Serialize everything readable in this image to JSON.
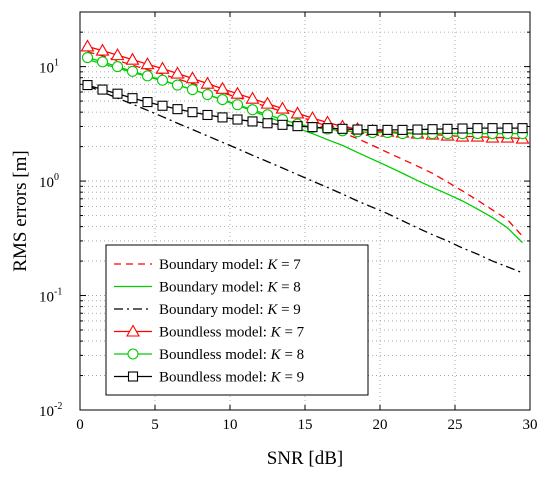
{
  "chart_data": {
    "type": "line",
    "title": "",
    "xlabel": "SNR [dB]",
    "ylabel": "RMS errors [m]",
    "xlim": [
      0,
      30
    ],
    "ylim": [
      0.01,
      30
    ],
    "yscale": "log",
    "grid": true,
    "legend_position": "bottom-left",
    "x_ticks": [
      0,
      5,
      10,
      15,
      20,
      25,
      30
    ],
    "x_tick_labels": [
      "0",
      "5",
      "10",
      "15",
      "20",
      "25",
      "30"
    ],
    "y_ticks": [
      0.01,
      0.1,
      1,
      10
    ],
    "y_tick_labels": [
      {
        "base": "10",
        "exp": "-2"
      },
      {
        "base": "10",
        "exp": "-1"
      },
      {
        "base": "10",
        "exp": "0"
      },
      {
        "base": "10",
        "exp": "1"
      }
    ],
    "x": [
      0.5,
      1.5,
      2.5,
      3.5,
      4.5,
      5.5,
      6.5,
      7.5,
      8.5,
      9.5,
      10.5,
      11.5,
      12.5,
      13.5,
      14.5,
      15.5,
      16.5,
      17.5,
      18.5,
      19.5,
      20.5,
      21.5,
      22.5,
      23.5,
      24.5,
      25.5,
      26.5,
      27.5,
      28.5,
      29.5
    ],
    "series": [
      {
        "name": "Boundary model: K = 7",
        "label_prefix": "Boundary model: ",
        "label_var": "K",
        "label_value": " = 7",
        "color": "#ff0000",
        "dash": "7,5",
        "marker": "none",
        "values": [
          13.5,
          12.4,
          11.3,
          10.3,
          9.4,
          8.6,
          7.8,
          7.1,
          6.5,
          5.9,
          5.4,
          4.9,
          4.45,
          4.05,
          3.7,
          3.35,
          3.0,
          2.65,
          2.35,
          2.05,
          1.78,
          1.55,
          1.35,
          1.17,
          0.98,
          0.82,
          0.68,
          0.56,
          0.46,
          0.33
        ]
      },
      {
        "name": "Boundary model: K = 8",
        "label_prefix": "Boundary model: ",
        "label_var": "K",
        "label_value": " = 8",
        "color": "#00cc00",
        "dash": "",
        "marker": "none",
        "values": [
          11.5,
          10.6,
          9.7,
          8.9,
          8.2,
          7.5,
          6.9,
          6.3,
          5.7,
          5.1,
          4.6,
          4.1,
          3.65,
          3.25,
          2.9,
          2.6,
          2.3,
          2.05,
          1.78,
          1.55,
          1.35,
          1.17,
          1.01,
          0.88,
          0.77,
          0.67,
          0.57,
          0.48,
          0.39,
          0.29
        ]
      },
      {
        "name": "Boundary model: K = 9",
        "label_prefix": "Boundary model: ",
        "label_var": "K",
        "label_value": " = 9",
        "color": "#000000",
        "dash": "9,4,2,4",
        "marker": "none",
        "values": [
          6.8,
          6.0,
          5.3,
          4.7,
          4.15,
          3.65,
          3.2,
          2.82,
          2.48,
          2.18,
          1.92,
          1.68,
          1.48,
          1.3,
          1.14,
          1.0,
          0.88,
          0.77,
          0.67,
          0.59,
          0.52,
          0.45,
          0.39,
          0.34,
          0.3,
          0.26,
          0.23,
          0.2,
          0.178,
          0.158
        ]
      },
      {
        "name": "Boundless model: K = 7",
        "label_prefix": "Boundless model: ",
        "label_var": "K",
        "label_value": " = 7",
        "color": "#ff0000",
        "dash": "",
        "marker": "triangle",
        "values": [
          15.0,
          13.8,
          12.6,
          11.5,
          10.5,
          9.6,
          8.7,
          7.9,
          7.1,
          6.4,
          5.8,
          5.25,
          4.75,
          4.3,
          3.9,
          3.55,
          3.25,
          3.0,
          2.85,
          2.75,
          2.7,
          2.65,
          2.6,
          2.55,
          2.5,
          2.45,
          2.45,
          2.4,
          2.4,
          2.35
        ]
      },
      {
        "name": "Boundless model: K = 8",
        "label_prefix": "Boundless model: ",
        "label_var": "K",
        "label_value": " = 8",
        "color": "#00cc00",
        "dash": "",
        "marker": "circle",
        "values": [
          12.0,
          11.0,
          10.0,
          9.1,
          8.3,
          7.6,
          6.9,
          6.3,
          5.7,
          5.15,
          4.65,
          4.2,
          3.8,
          3.45,
          3.15,
          2.95,
          2.85,
          2.75,
          2.7,
          2.65,
          2.65,
          2.6,
          2.6,
          2.6,
          2.6,
          2.6,
          2.6,
          2.6,
          2.6,
          2.6
        ]
      },
      {
        "name": "Boundless model: K = 9",
        "label_prefix": "Boundless model: ",
        "label_var": "K",
        "label_value": " = 9",
        "color": "#000000",
        "dash": "",
        "marker": "square",
        "values": [
          6.9,
          6.3,
          5.8,
          5.3,
          4.9,
          4.55,
          4.25,
          4.0,
          3.78,
          3.6,
          3.45,
          3.32,
          3.2,
          3.1,
          3.02,
          2.96,
          2.9,
          2.86,
          2.82,
          2.8,
          2.8,
          2.8,
          2.82,
          2.84,
          2.86,
          2.88,
          2.9,
          2.9,
          2.9,
          2.9
        ]
      }
    ]
  }
}
